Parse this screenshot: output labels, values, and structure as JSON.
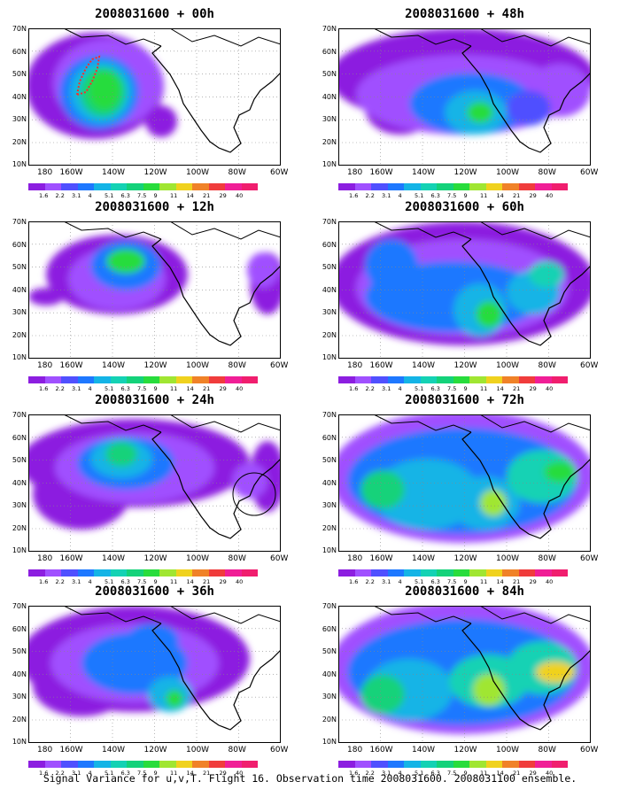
{
  "caption": "Signal Variance for u,v,T. Flight 16. Observation time 2008031600. 2008031100 ensemble.",
  "lat_labels": [
    "70N",
    "60N",
    "50N",
    "40N",
    "30N",
    "20N",
    "10N"
  ],
  "lon_labels": [
    "180",
    "160W",
    "140W",
    "120W",
    "100W",
    "80W",
    "60W"
  ],
  "colorbar": {
    "labels": [
      "1.6",
      "2.2",
      "3.1",
      "4",
      "5.1",
      "6.3",
      "7.5",
      "9",
      "11",
      "14",
      "21",
      "29",
      "40"
    ],
    "colors": [
      "#8c1ee0",
      "#a050ff",
      "#5050ff",
      "#1e78ff",
      "#14b4e6",
      "#14d2b4",
      "#14d27a",
      "#28dc3c",
      "#a0e632",
      "#f0d21e",
      "#f08228",
      "#f03c3c",
      "#f01e96",
      "#f01e6e"
    ]
  },
  "panels": [
    {
      "title": "2008031600 + 00h"
    },
    {
      "title": "2008031600 + 48h"
    },
    {
      "title": "2008031600 + 12h"
    },
    {
      "title": "2008031600 + 60h"
    },
    {
      "title": "2008031600 + 24h"
    },
    {
      "title": "2008031600 + 72h"
    },
    {
      "title": "2008031600 + 36h"
    },
    {
      "title": "2008031600 + 84h"
    }
  ]
}
